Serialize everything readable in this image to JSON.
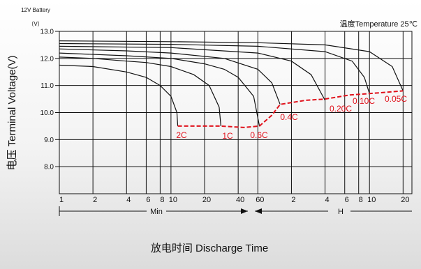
{
  "chart_data": {
    "type": "line",
    "title": "",
    "ylabel": "电压 Terminal Voltage(V)",
    "xlabel": "放电时间 Discharge Time",
    "battery_label": "12V Battery",
    "unit_label": "（V）",
    "temperature_label": "温度Temperature 25℃",
    "ylim": [
      7.0,
      13.0
    ],
    "y_ticks": [
      "13.0",
      "12.0",
      "11.0",
      "10.0",
      "9.0",
      "8.0"
    ],
    "x_scale": "log",
    "x_ticks": [
      {
        "label": "1",
        "min": 1
      },
      {
        "label": "2",
        "min": 2
      },
      {
        "label": "4",
        "min": 4
      },
      {
        "label": "6",
        "min": 6
      },
      {
        "label": "8",
        "min": 8
      },
      {
        "label": "10",
        "min": 10
      },
      {
        "label": "20",
        "min": 20
      },
      {
        "label": "40",
        "min": 40
      },
      {
        "label": "60",
        "min": 60
      },
      {
        "label": "2",
        "min": 120
      },
      {
        "label": "4",
        "min": 240
      },
      {
        "label": "6",
        "min": 360
      },
      {
        "label": "8",
        "min": 480
      },
      {
        "label": "10",
        "min": 600
      },
      {
        "label": "20",
        "min": 1200
      }
    ],
    "min_label": "Min",
    "hour_label": "H",
    "series": [
      {
        "name": "2C",
        "x": [
          1,
          2,
          4,
          6,
          8,
          10,
          11.3,
          11.5
        ],
        "y": [
          11.75,
          11.7,
          11.5,
          11.3,
          11.0,
          10.6,
          10.0,
          9.5
        ]
      },
      {
        "name": "1C",
        "x": [
          1,
          2,
          4,
          6,
          10,
          16,
          22,
          27,
          28
        ],
        "y": [
          12.05,
          12.0,
          11.9,
          11.85,
          11.7,
          11.4,
          11.0,
          10.2,
          9.5
        ]
      },
      {
        "name": "0.6C",
        "x": [
          1,
          4,
          10,
          20,
          30,
          40,
          55,
          62
        ],
        "y": [
          12.2,
          12.1,
          12.0,
          11.8,
          11.6,
          11.3,
          10.6,
          9.5
        ]
      },
      {
        "name": "0.4C",
        "x": [
          1,
          4,
          10,
          30,
          60,
          80,
          95
        ],
        "y": [
          12.35,
          12.28,
          12.2,
          12.0,
          11.6,
          11.1,
          10.3
        ]
      },
      {
        "name": "0.20C",
        "x": [
          1,
          10,
          60,
          120,
          180,
          240
        ],
        "y": [
          12.45,
          12.4,
          12.2,
          11.9,
          11.4,
          10.45
        ]
      },
      {
        "name": "0.10C",
        "x": [
          1,
          10,
          60,
          240,
          420,
          540,
          600
        ],
        "y": [
          12.55,
          12.52,
          12.45,
          12.25,
          11.9,
          11.3,
          10.7
        ]
      },
      {
        "name": "0.05C",
        "x": [
          1,
          10,
          60,
          240,
          600,
          960,
          1200
        ],
        "y": [
          12.65,
          12.62,
          12.58,
          12.5,
          12.25,
          11.7,
          10.8
        ]
      }
    ],
    "final_voltage": {
      "x": [
        11.5,
        20,
        28,
        45,
        62,
        80,
        95,
        160,
        240,
        400,
        600,
        1200
      ],
      "y": [
        9.5,
        9.5,
        9.5,
        9.45,
        9.5,
        9.9,
        10.3,
        10.45,
        10.5,
        10.65,
        10.7,
        10.8
      ]
    },
    "annotations": [
      "2C",
      "1C",
      "0.6C",
      "0.4C",
      "0.20C",
      "0.10C",
      "0.05C"
    ],
    "grid": true,
    "colors": {
      "curves": "#111111",
      "final_voltage": "#e0111b",
      "annotations": "#e0111b"
    }
  }
}
